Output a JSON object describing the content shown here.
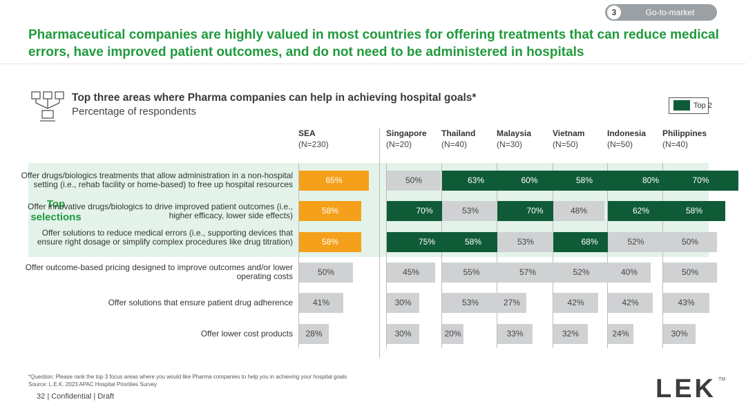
{
  "nav": {
    "number": "3",
    "label": "Go-to-market"
  },
  "title": "Pharmaceutical companies are highly valued in most countries for offering treatments that can reduce medical errors, have improved patient outcomes, and do not need to be administered in hospitals",
  "chart_header": {
    "title": "Top three areas where Pharma companies can help in achieving hospital goals*",
    "subtitle": "Percentage of respondents"
  },
  "legend": {
    "label": "Top 2"
  },
  "top_selections_label": "Top selections",
  "colors": {
    "top2": "#0f5b38",
    "sea": "#f5a01a",
    "other": "#cfd1d3",
    "band": "#e3f3ea",
    "title": "#1f9a3c"
  },
  "chart_data": {
    "type": "bar",
    "title": "Top three areas where Pharma companies can help in achieving hospital goals*",
    "subtitle": "Percentage of respondents",
    "unit": "%",
    "xlim": [
      0,
      100
    ],
    "columns": [
      {
        "name": "SEA",
        "n": "(N=230)"
      },
      {
        "name": "Singapore",
        "n": "(N=20)"
      },
      {
        "name": "Thailand",
        "n": "(N=40)"
      },
      {
        "name": "Malaysia",
        "n": "(N=30)"
      },
      {
        "name": "Vietnam",
        "n": "(N=50)"
      },
      {
        "name": "Indonesia",
        "n": "(N=50)"
      },
      {
        "name": "Philippines",
        "n": "(N=40)"
      }
    ],
    "categories": [
      "Offer drugs/biologics treatments that allow administration in a non-hospital setting (i.e., rehab facility or home-based) to free up hospital resources",
      "Offer innovative drugs/biologics to drive improved patient outcomes (i.e., higher efficacy, lower side effects)",
      "Offer solutions to reduce medical errors (i.e., supporting devices that ensure right dosage or simplify complex procedures like drug titration)",
      "Offer outcome-based pricing designed to improve outcomes and/or lower operating costs",
      "Offer solutions that ensure patient drug adherence",
      "Offer lower cost products"
    ],
    "top_selection_rows": 3,
    "series": [
      {
        "name": "SEA",
        "values": [
          65,
          58,
          58,
          50,
          41,
          28
        ],
        "highlight": [
          "sea",
          "sea",
          "sea",
          "none",
          "none",
          "none"
        ]
      },
      {
        "name": "Singapore",
        "values": [
          50,
          70,
          75,
          45,
          30,
          30
        ],
        "highlight": [
          "none",
          "top2",
          "top2",
          "none",
          "none",
          "none"
        ]
      },
      {
        "name": "Thailand",
        "values": [
          63,
          53,
          58,
          55,
          53,
          20
        ],
        "highlight": [
          "top2",
          "none",
          "top2",
          "none",
          "none",
          "none"
        ]
      },
      {
        "name": "Malaysia",
        "values": [
          60,
          70,
          53,
          57,
          27,
          33
        ],
        "highlight": [
          "top2",
          "top2",
          "none",
          "none",
          "none",
          "none"
        ]
      },
      {
        "name": "Vietnam",
        "values": [
          58,
          48,
          68,
          52,
          42,
          32
        ],
        "highlight": [
          "top2",
          "none",
          "top2",
          "none",
          "none",
          "none"
        ]
      },
      {
        "name": "Indonesia",
        "values": [
          80,
          62,
          52,
          40,
          42,
          24
        ],
        "highlight": [
          "top2",
          "top2",
          "none",
          "none",
          "none",
          "none"
        ]
      },
      {
        "name": "Philippines",
        "values": [
          70,
          58,
          50,
          50,
          43,
          30
        ],
        "highlight": [
          "top2",
          "top2",
          "none",
          "none",
          "none",
          "none"
        ]
      }
    ]
  },
  "footnote": "*Question: Please rank the top 3 focus areas where you would like Pharma companies to help you in achieving your hospital goals",
  "source": "Source: L.E.K. 2023 APAC Hospital Priorities Survey",
  "page": {
    "number": "32",
    "confidential": "| Confidential | Draft"
  },
  "logo": {
    "text": "LEK",
    "tm": "TM"
  }
}
